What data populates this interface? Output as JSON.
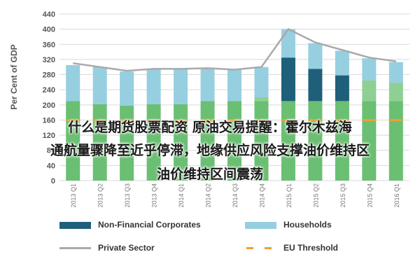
{
  "overlay_text": [
    "什么是期货股票配资 原油交易提醒：霍尔木兹海",
    "通航量骤降至近乎停滞，地缘供应风险支撑油价维持区",
    "油价维持区间震荡"
  ],
  "colors": {
    "non_financial": "#1f5f7a",
    "households": "#96cfe0",
    "base_green": "#8fcf93",
    "base_green_dark": "#6bbf73",
    "private_sector": "#a9a9a9",
    "eu_threshold": "#f0a030"
  },
  "chart_data": {
    "type": "bar",
    "stacked": true,
    "ylabel": "Per Cent of GDP",
    "ylim": [
      0,
      440
    ],
    "yticks": [
      0,
      40,
      80,
      120,
      160,
      200,
      240,
      280,
      320,
      360,
      400,
      440
    ],
    "categories": [
      "2013 Q1",
      "2013 Q2",
      "2013 Q3",
      "2013 Q4",
      "2014 Q1",
      "2014 Q2",
      "2014 Q3",
      "2014 Q4",
      "2015 Q1",
      "2015 Q2",
      "2015 Q3",
      "2015 Q4",
      "2016 Q1"
    ],
    "x_tick_labels": [
      "2013 Q1",
      "2013 Q2",
      "2013 Q3",
      "2013 Q4",
      "2014 Q1",
      "2014 Q2",
      "2014 Q3",
      "2014 Q4",
      "2015 Q1",
      "2015 Q2",
      "2015 Q3",
      "2015 Q4",
      "2016 Q1"
    ],
    "series": [
      {
        "name": "Non-Financial Corporates",
        "values": [
          210,
          202,
          198,
          202,
          202,
          210,
          210,
          220,
          325,
          295,
          278,
          265,
          258
        ]
      },
      {
        "name": "Households",
        "values": [
          95,
          98,
          90,
          92,
          92,
          87,
          83,
          80,
          75,
          68,
          65,
          58,
          55
        ]
      }
    ],
    "private_sector": {
      "name": "Private Sector",
      "values": [
        310,
        300,
        290,
        295,
        295,
        297,
        293,
        300,
        400,
        365,
        345,
        325,
        315
      ]
    },
    "eu_threshold": {
      "name": "EU Threshold",
      "value": 160
    },
    "legend": {
      "placement": "bottom",
      "entries": [
        "Non-Financial Corporates",
        "Households",
        "Private Sector",
        "EU Threshold"
      ]
    },
    "grid": true
  }
}
